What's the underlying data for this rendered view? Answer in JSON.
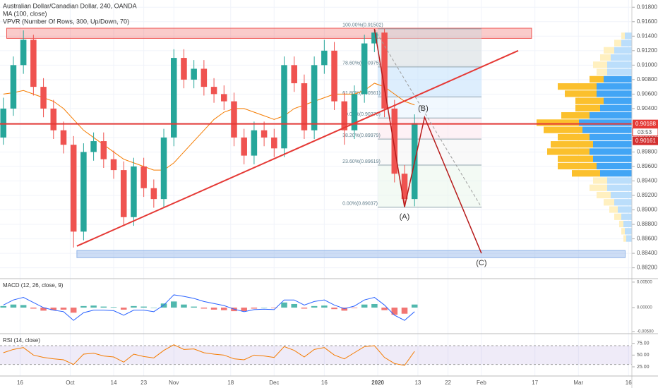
{
  "chart_data": {
    "type": "candlestick",
    "title": "Australian Dollar/Canadian Dollar, 240, OANDA",
    "indicators": [
      "MA (100, close)",
      "VPVR (Number Of Rows, 300, Up/Down, 70)"
    ],
    "x": [
      10,
      13,
      16,
      19,
      22,
      25,
      28,
      31,
      34,
      37,
      40,
      43,
      46,
      49,
      52,
      55,
      58,
      61,
      64,
      67,
      70,
      73,
      76,
      79,
      82,
      85,
      88,
      91,
      94,
      97,
      100,
      103,
      106,
      109,
      112,
      115,
      118,
      121,
      124,
      127,
      130,
      133
    ],
    "open": [
      0.9,
      0.904,
      0.91,
      0.9135,
      0.907,
      0.904,
      0.901,
      0.899,
      0.887,
      0.898,
      0.8995,
      0.897,
      0.8955,
      0.889,
      0.896,
      0.893,
      0.8915,
      0.9,
      0.911,
      0.908,
      0.9095,
      0.907,
      0.906,
      0.905,
      0.9,
      0.8975,
      0.901,
      0.9,
      0.8985,
      0.91,
      0.9075,
      0.901,
      0.91,
      0.912,
      0.905,
      0.901,
      0.906,
      0.913,
      0.9145,
      0.904,
      0.895,
      0.8915
    ],
    "high": [
      0.9055,
      0.9112,
      0.9148,
      0.9142,
      0.9082,
      0.9052,
      0.9022,
      0.9002,
      0.8992,
      0.9007,
      0.9007,
      0.8982,
      0.8967,
      0.8972,
      0.8972,
      0.8942,
      0.9012,
      0.9122,
      0.9122,
      0.9107,
      0.9107,
      0.9082,
      0.9072,
      0.9062,
      0.9012,
      0.9022,
      0.9022,
      0.9012,
      0.9112,
      0.9112,
      0.9087,
      0.9112,
      0.9135,
      0.9132,
      0.9062,
      0.9072,
      0.9142,
      0.915,
      0.915,
      0.9052,
      0.8962,
      0.9032
    ],
    "low": [
      0.899,
      0.903,
      0.9088,
      0.9058,
      0.9028,
      0.8998,
      0.8978,
      0.8848,
      0.8858,
      0.8968,
      0.8958,
      0.8943,
      0.8878,
      0.8878,
      0.8918,
      0.8903,
      0.8903,
      0.8988,
      0.9068,
      0.9068,
      0.9058,
      0.9048,
      0.9038,
      0.8988,
      0.8963,
      0.8963,
      0.8988,
      0.8973,
      0.8973,
      0.9063,
      0.8998,
      0.8998,
      0.9088,
      0.9038,
      0.899,
      0.8998,
      0.9048,
      0.9118,
      0.9028,
      0.8938,
      0.8904,
      0.8905
    ],
    "close": [
      0.904,
      0.91,
      0.9135,
      0.907,
      0.904,
      0.901,
      0.899,
      0.887,
      0.898,
      0.8995,
      0.897,
      0.8955,
      0.889,
      0.896,
      0.893,
      0.8915,
      0.9,
      0.911,
      0.908,
      0.9095,
      0.907,
      0.906,
      0.905,
      0.9,
      0.8975,
      0.901,
      0.9,
      0.8985,
      0.91,
      0.9075,
      0.901,
      0.91,
      0.912,
      0.905,
      0.901,
      0.906,
      0.913,
      0.9145,
      0.904,
      0.895,
      0.8915,
      0.902
    ],
    "up_color": "#26a69a",
    "down_color": "#ef5350",
    "ma": {
      "color": "#f57c00",
      "values": [
        0.906,
        0.9062,
        0.9065,
        0.906,
        0.9055,
        0.905,
        0.904,
        0.9025,
        0.901,
        0.9,
        0.899,
        0.898,
        0.897,
        0.8965,
        0.896,
        0.8955,
        0.8955,
        0.8965,
        0.898,
        0.8995,
        0.901,
        0.9025,
        0.9035,
        0.904,
        0.904,
        0.9035,
        0.903,
        0.9025,
        0.903,
        0.904,
        0.9045,
        0.905,
        0.9055,
        0.906,
        0.906,
        0.906,
        0.9065,
        0.9075,
        0.907,
        0.906,
        0.905,
        0.9045
      ]
    },
    "xlim": [
      9,
      198
    ],
    "xticks": [
      {
        "value": 15,
        "label": "16"
      },
      {
        "value": 30,
        "label": "Oct"
      },
      {
        "value": 43,
        "label": "14"
      },
      {
        "value": 52,
        "label": "23"
      },
      {
        "value": 61,
        "label": "Nov"
      },
      {
        "value": 78,
        "label": "18"
      },
      {
        "value": 91,
        "label": "Dec"
      },
      {
        "value": 106,
        "label": "16"
      },
      {
        "value": 122,
        "label": "2020"
      },
      {
        "value": 134,
        "label": "13"
      },
      {
        "value": 143,
        "label": "22"
      },
      {
        "value": 153,
        "label": "Feb"
      },
      {
        "value": 169,
        "label": "17"
      },
      {
        "value": 182,
        "label": "Mar"
      },
      {
        "value": 197,
        "label": "16"
      }
    ],
    "ylim": [
      0.8805,
      0.919
    ],
    "yticks": [
      {
        "value": 0.918,
        "label": "0.91800"
      },
      {
        "value": 0.916,
        "label": "0.91600"
      },
      {
        "value": 0.914,
        "label": "0.91400"
      },
      {
        "value": 0.912,
        "label": "0.91200"
      },
      {
        "value": 0.91,
        "label": "0.91000"
      },
      {
        "value": 0.908,
        "label": "0.90800"
      },
      {
        "value": 0.906,
        "label": "0.90600"
      },
      {
        "value": 0.904,
        "label": "0.90400"
      },
      {
        "value": 0.902,
        "label": "0.90200"
      },
      {
        "value": 0.9,
        "label": "0.90000"
      },
      {
        "value": 0.898,
        "label": "0.89800"
      },
      {
        "value": 0.896,
        "label": "0.89600"
      },
      {
        "value": 0.894,
        "label": "0.89400"
      },
      {
        "value": 0.892,
        "label": "0.89200"
      },
      {
        "value": 0.89,
        "label": "0.89000"
      },
      {
        "value": 0.888,
        "label": "0.88800"
      },
      {
        "value": 0.886,
        "label": "0.88600"
      },
      {
        "value": 0.884,
        "label": "0.88400"
      },
      {
        "value": 0.882,
        "label": "0.88200"
      }
    ],
    "grid": true,
    "price_line": {
      "value": 0.90188,
      "label": "0.90188",
      "color": "#e53935"
    },
    "countdown": "03:53",
    "last_price": {
      "value": 0.90161,
      "label": "0.90161"
    },
    "resistance_box": {
      "x": [
        11,
        168
      ],
      "y": [
        0.9137,
        0.9151
      ],
      "color": "#ef5350"
    },
    "support_box": {
      "x": [
        32,
        196
      ],
      "y": [
        0.8834,
        0.8844
      ],
      "color": "#90b4e8"
    },
    "trendline": {
      "x": [
        32,
        164
      ],
      "y": [
        0.885,
        0.912
      ],
      "color": "#e53935"
    },
    "fib": {
      "x": [
        122,
        153
      ],
      "levels": [
        {
          "value": 0.91502,
          "label": "100.00%(0.91502)"
        },
        {
          "value": 0.90975,
          "label": "78.60%(0.90975)"
        },
        {
          "value": 0.90561,
          "label": "61.80%(0.90561)"
        },
        {
          "value": 0.9027,
          "label": "50.00%(0.90270)"
        },
        {
          "value": 0.89979,
          "label": "38.20%(0.89979)"
        },
        {
          "value": 0.89619,
          "label": "23.60%(0.89619)"
        },
        {
          "value": 0.89037,
          "label": "0.00%(0.89037)"
        }
      ]
    },
    "waves": {
      "x": [
        121,
        130,
        136,
        153
      ],
      "y": [
        0.915,
        0.8904,
        0.9028,
        0.884
      ],
      "labels": [
        null,
        "(A)",
        "(B)",
        "(C)"
      ],
      "color": "#b71c1c"
    },
    "volume_profile": {
      "value_area": [
        0.895,
        0.908
      ],
      "prices": [
        0.886,
        0.887,
        0.888,
        0.889,
        0.89,
        0.891,
        0.892,
        0.893,
        0.894,
        0.895,
        0.896,
        0.897,
        0.898,
        0.899,
        0.9,
        0.901,
        0.902,
        0.903,
        0.904,
        0.905,
        0.906,
        0.907,
        0.908,
        0.909,
        0.91,
        0.911,
        0.912,
        0.913,
        0.914
      ],
      "up": [
        8,
        10,
        12,
        15,
        20,
        25,
        30,
        35,
        35,
        45,
        50,
        55,
        60,
        55,
        60,
        70,
        75,
        60,
        45,
        40,
        50,
        50,
        40,
        35,
        35,
        30,
        25,
        15,
        10
      ],
      "down": [
        4,
        5,
        6,
        10,
        12,
        15,
        20,
        25,
        20,
        40,
        55,
        50,
        60,
        60,
        45,
        55,
        60,
        40,
        35,
        40,
        45,
        55,
        20,
        15,
        20,
        15,
        15,
        10,
        5
      ]
    },
    "macd": {
      "title": "MACD (12, 26, close, 9)",
      "ylim": [
        -0.0047,
        0.0054
      ],
      "yticks": [
        {
          "value": 0.005,
          "label": "0.00500"
        },
        {
          "value": 0,
          "label": "0.00000"
        },
        {
          "value": -0.005,
          "label": "-0.00500"
        }
      ],
      "color": "#2962ff",
      "values": [
        0.0005,
        0.0015,
        0.002,
        0.001,
        0,
        -0.0005,
        -0.0008,
        -0.0025,
        -0.001,
        -0.0005,
        -0.0005,
        -0.0006,
        -0.0015,
        -0.0005,
        -0.0005,
        -0.0008,
        0.0005,
        0.0025,
        0.0022,
        0.0018,
        0.0012,
        0.0008,
        0.0004,
        -0.0003,
        -0.0008,
        -0.0004,
        -0.0003,
        -0.0004,
        0.0015,
        0.0015,
        0.0005,
        0.0012,
        0.0015,
        0.0005,
        -0.0002,
        0.0003,
        0.0015,
        0.002,
        0.0005,
        -0.0015,
        -0.0025,
        -0.0008
      ],
      "histogram": [
        0.0003,
        0.0006,
        0.0005,
        -0.0002,
        -0.0006,
        -0.0005,
        -0.0004,
        -0.001,
        0.0003,
        0.0004,
        0.0002,
        0.0001,
        -0.0004,
        0.0003,
        0.0002,
        0,
        0.0008,
        0.0012,
        0.0006,
        0.0002,
        -0.0002,
        -0.0004,
        -0.0005,
        -0.0007,
        -0.0007,
        -0.0002,
        0,
        -0.0001,
        0.001,
        0.0007,
        -0.0002,
        0.0003,
        0.0004,
        -0.0003,
        -0.0006,
        -0.0001,
        0.0006,
        0.0007,
        -0.0005,
        -0.0014,
        -0.0012,
        0.0006
      ]
    },
    "rsi": {
      "title": "RSI (14, close)",
      "ylim": [
        10,
        88
      ],
      "band": [
        30,
        70
      ],
      "yticks": [
        {
          "value": 75,
          "label": "75.00"
        },
        {
          "value": 50,
          "label": "50.00"
        },
        {
          "value": 25,
          "label": "25.00"
        }
      ],
      "color": "#f57c00",
      "values": [
        55,
        62,
        66,
        50,
        45,
        42,
        40,
        30,
        52,
        54,
        48,
        46,
        35,
        52,
        47,
        44,
        60,
        72,
        62,
        63,
        55,
        52,
        50,
        42,
        40,
        50,
        48,
        45,
        68,
        60,
        46,
        62,
        66,
        50,
        42,
        55,
        68,
        70,
        45,
        32,
        28,
        58
      ]
    }
  }
}
